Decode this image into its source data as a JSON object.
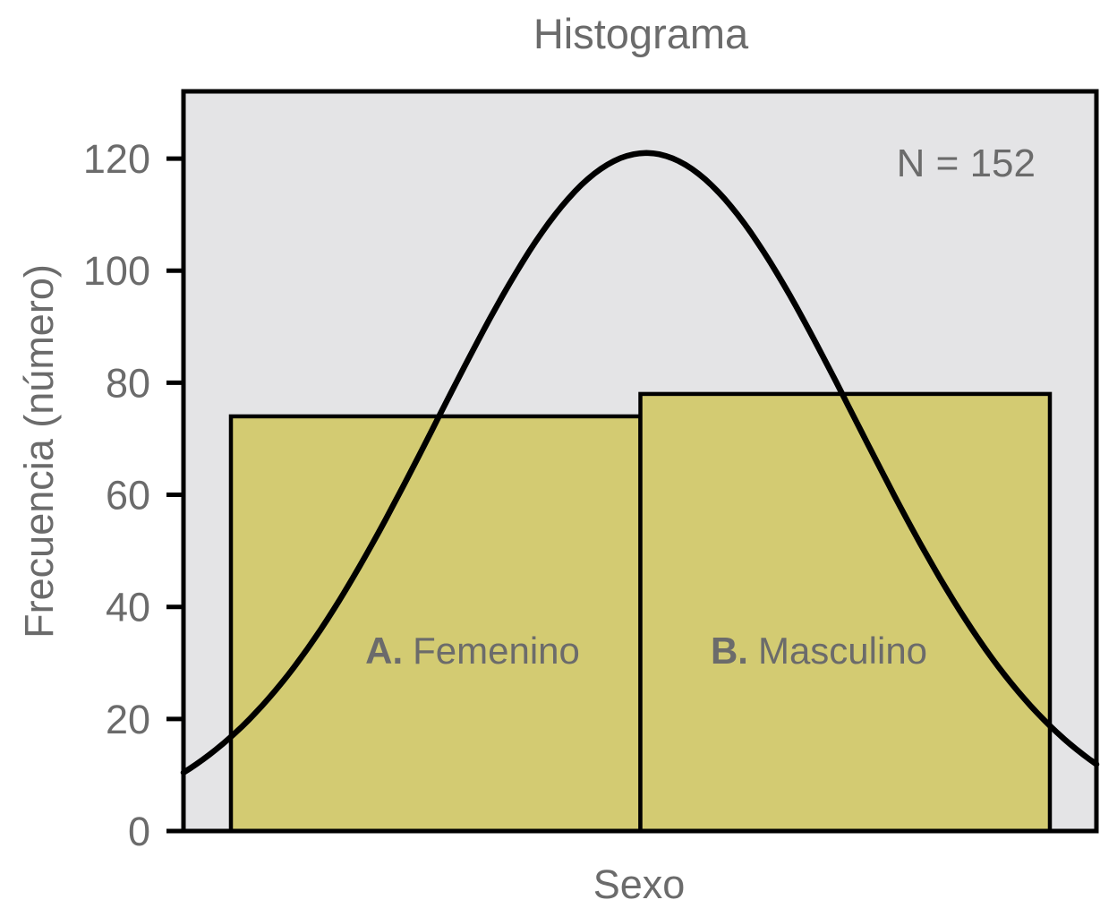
{
  "chart_data": {
    "type": "bar",
    "title": "Histograma",
    "xlabel": "Sexo",
    "ylabel": "Frecuencia (número)",
    "annotation": "N = 152",
    "categories": [
      "Femenino",
      "Masculino"
    ],
    "bars": [
      {
        "prefix": "A.",
        "label": "Femenino",
        "value": 74
      },
      {
        "prefix": "B.",
        "label": "Masculino",
        "value": 78
      }
    ],
    "series": [
      {
        "name": "Frecuencia",
        "values": [
          74,
          78
        ]
      }
    ],
    "yticks": [
      0,
      20,
      40,
      60,
      80,
      100,
      120
    ],
    "ylim": [
      0,
      132
    ],
    "grid": false,
    "legend": "none",
    "curve": {
      "type": "normal",
      "peak": 121,
      "center_frac": 0.507,
      "sigma_frac": 0.229
    },
    "colors": {
      "bar_fill": "#d3cb72",
      "plot_background": "#e4e4e6",
      "outer_background": "#ffffff",
      "line": "#000000",
      "text": "#6b6b6b"
    }
  }
}
